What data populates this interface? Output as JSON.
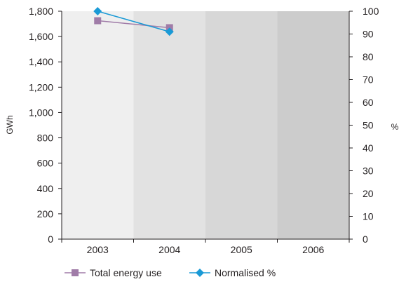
{
  "chart_data": {
    "type": "line",
    "categories": [
      "2003",
      "2004",
      "2005",
      "2006"
    ],
    "left_axis": {
      "label": "GWh",
      "ylim": [
        0,
        1800
      ],
      "step": 200,
      "tick_labels": [
        "0",
        "200",
        "400",
        "600",
        "800",
        "1,000",
        "1,200",
        "1,400",
        "1,600",
        "1,800"
      ]
    },
    "right_axis": {
      "label": "%",
      "ylim": [
        0,
        100
      ],
      "step": 10,
      "tick_labels": [
        "0",
        "10",
        "20",
        "30",
        "40",
        "50",
        "60",
        "70",
        "80",
        "90",
        "100"
      ]
    },
    "series": [
      {
        "name": "Total energy use",
        "axis": "left",
        "values": [
          1725,
          1670,
          null,
          null
        ],
        "color": "#a07ca8",
        "marker": "square"
      },
      {
        "name": "Normalised %",
        "axis": "right",
        "values": [
          100,
          91,
          null,
          null
        ],
        "color": "#1a9ad6",
        "marker": "diamond"
      }
    ],
    "band_colors": [
      "#efefef",
      "#e2e2e2",
      "#d7d7d7",
      "#cccccc"
    ],
    "legend_position": "bottom",
    "grid": false
  }
}
